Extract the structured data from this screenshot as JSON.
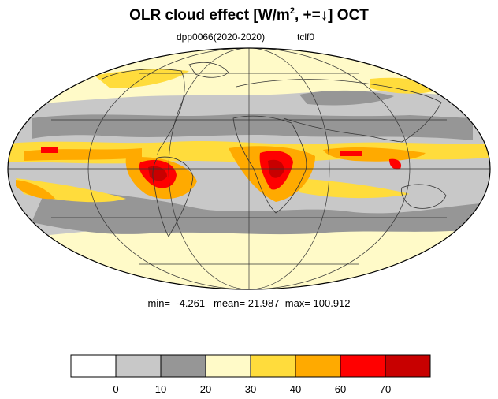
{
  "title": {
    "main": "OLR cloud effect [W/m",
    "superscript": "2",
    "rest": ", +=↓]  OCT"
  },
  "subtitle": {
    "left": "dpp0066(2020-2020)",
    "right": "tclf0"
  },
  "stats": {
    "min_label": "min=",
    "min": "-4.261",
    "mean_label": "mean=",
    "mean": "21.987",
    "max_label": "max=",
    "max": "100.912"
  },
  "colorbar": {
    "levels": [
      "0",
      "10",
      "20",
      "30",
      "40",
      "60",
      "70"
    ],
    "colors": [
      "#ffffff",
      "#c8c8c8",
      "#969696",
      "#fffac8",
      "#ffdc3c",
      "#ffaa00",
      "#ff0000",
      "#c80000"
    ]
  },
  "palette": {
    "light_gray": "#c8c8c8",
    "dark_gray": "#969696",
    "pale_yellow": "#fffac8",
    "yellow": "#ffdc3c",
    "orange": "#ffaa00",
    "red": "#ff0000",
    "dark_red": "#c80000"
  }
}
